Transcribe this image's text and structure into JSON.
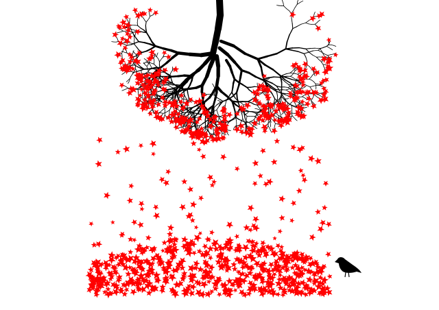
{
  "scene": {
    "background_color": "#ffffff",
    "tree_color": "#000000",
    "leaf_color": "#ff0000",
    "bird_color": "#000000",
    "subjects": [
      "inverted-tree-silhouette",
      "falling-maple-leaves",
      "leaf-pile",
      "small-bird"
    ]
  }
}
